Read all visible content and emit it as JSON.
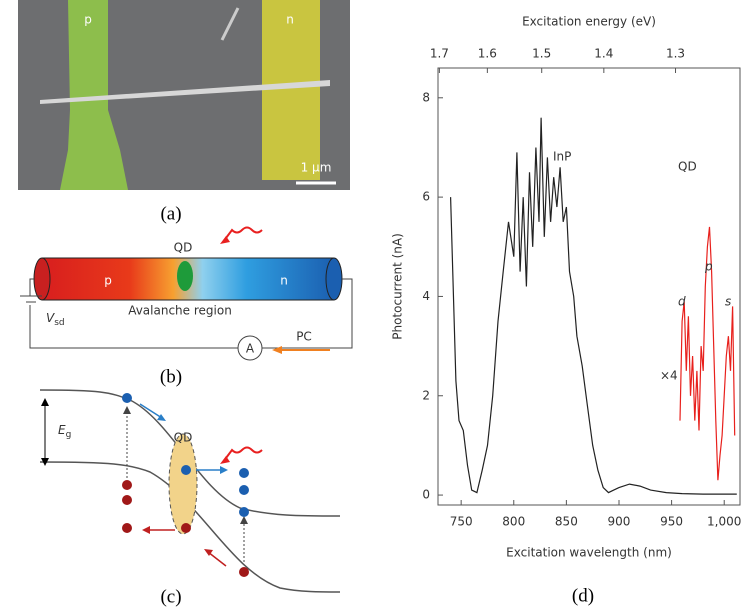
{
  "panels": {
    "a": {
      "caption": "(a)",
      "p": "p",
      "n": "n",
      "scale_bar": "1 µm"
    },
    "b": {
      "caption": "(b)",
      "qd": "QD",
      "p": "p",
      "n": "n",
      "region": "Avalanche region",
      "v": "V",
      "v_sub": "sd",
      "ammeter": "A",
      "pc": "PC"
    },
    "c": {
      "caption": "(c)",
      "e": "E",
      "e_sub": "g",
      "qd": "QD"
    }
  },
  "chart_data": {
    "type": "line",
    "caption": "(d)",
    "xlabel": "Excitation wavelength (nm)",
    "ylabel": "Photocurrent (nA)",
    "x2label": "Excitation energy (eV)",
    "xlim": [
      728,
      1015
    ],
    "ylim": [
      -0.2,
      8.6
    ],
    "xticks": [
      750,
      800,
      850,
      900,
      950,
      {
        "value": 1000,
        "label": "1,000"
      }
    ],
    "yticks": [
      0,
      2,
      4,
      6,
      8
    ],
    "x2ticks": [
      1.7,
      1.6,
      1.5,
      1.4,
      1.3
    ],
    "annotations": [
      "InP",
      "QD",
      "d",
      "p",
      "s",
      "×4"
    ],
    "series": [
      {
        "color": "#222222",
        "x": [
          740,
          745,
          748,
          752,
          756,
          760,
          765,
          770,
          775,
          780,
          785,
          790,
          795,
          800,
          803,
          806,
          809,
          812,
          815,
          818,
          821,
          824,
          826,
          829,
          832,
          835,
          838,
          841,
          844,
          847,
          850,
          853,
          857,
          860,
          865,
          870,
          875,
          880,
          885,
          890,
          895,
          900,
          910,
          920,
          930,
          945,
          960,
          980,
          1000,
          1012
        ],
        "values": [
          6.0,
          2.3,
          1.5,
          1.3,
          0.6,
          0.1,
          0.05,
          0.5,
          1.0,
          2.0,
          3.5,
          4.5,
          5.5,
          4.8,
          6.9,
          4.5,
          6.0,
          4.2,
          6.5,
          5.0,
          7.0,
          5.5,
          7.6,
          5.2,
          6.8,
          5.5,
          6.4,
          5.8,
          6.6,
          5.5,
          5.8,
          4.5,
          4.0,
          3.2,
          2.6,
          1.8,
          1.0,
          0.5,
          0.15,
          0.05,
          0.1,
          0.15,
          0.22,
          0.18,
          0.1,
          0.05,
          0.03,
          0.02,
          0.02,
          0.02
        ]
      },
      {
        "color": "#e8201c",
        "x": [
          958,
          960,
          962,
          964,
          966,
          968,
          970,
          972,
          974,
          976,
          978,
          980,
          982,
          984,
          986,
          988,
          990,
          992,
          994,
          996,
          998,
          1000,
          1002,
          1004,
          1006,
          1008,
          1010
        ],
        "values": [
          1.5,
          3.5,
          3.9,
          2.5,
          3.6,
          2.0,
          2.8,
          1.5,
          2.5,
          1.3,
          3.0,
          2.5,
          4.2,
          5.0,
          5.4,
          4.5,
          3.0,
          1.5,
          0.3,
          0.8,
          1.2,
          2.0,
          2.8,
          3.2,
          2.5,
          3.8,
          1.2
        ]
      }
    ]
  }
}
